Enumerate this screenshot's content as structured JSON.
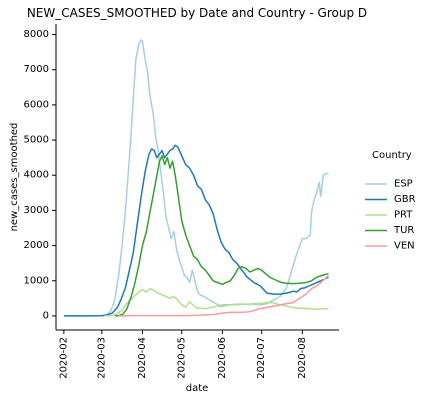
{
  "chart_data": {
    "type": "line",
    "title": "NEW_CASES_SMOOTHED by Date and Country - Group D",
    "xlabel": "date",
    "ylabel": "new_cases_smoothed",
    "x_ticks": [
      "2020-02",
      "2020-03",
      "2020-04",
      "2020-05",
      "2020-06",
      "2020-07",
      "2020-08"
    ],
    "x_range": [
      "2020-01-26",
      "2020-08-29"
    ],
    "y_ticks": [
      0,
      1000,
      2000,
      3000,
      4000,
      5000,
      6000,
      7000,
      8000
    ],
    "ylim": [
      -400,
      8300
    ],
    "grid": false,
    "legend": {
      "title": "Country",
      "placement": "right"
    },
    "series": [
      {
        "name": "ESP",
        "color": "#a6cee3",
        "points": [
          [
            "2020-02-01",
            0
          ],
          [
            "2020-02-15",
            0
          ],
          [
            "2020-02-25",
            5
          ],
          [
            "2020-03-01",
            10
          ],
          [
            "2020-03-05",
            40
          ],
          [
            "2020-03-08",
            150
          ],
          [
            "2020-03-11",
            500
          ],
          [
            "2020-03-14",
            1200
          ],
          [
            "2020-03-17",
            2200
          ],
          [
            "2020-03-19",
            3000
          ],
          [
            "2020-03-21",
            4000
          ],
          [
            "2020-03-23",
            5000
          ],
          [
            "2020-03-25",
            6200
          ],
          [
            "2020-03-27",
            7300
          ],
          [
            "2020-03-29",
            7700
          ],
          [
            "2020-03-31",
            7850
          ],
          [
            "2020-04-01",
            7800
          ],
          [
            "2020-04-03",
            7300
          ],
          [
            "2020-04-05",
            6900
          ],
          [
            "2020-04-07",
            6200
          ],
          [
            "2020-04-09",
            5800
          ],
          [
            "2020-04-11",
            5100
          ],
          [
            "2020-04-13",
            4700
          ],
          [
            "2020-04-15",
            4100
          ],
          [
            "2020-04-17",
            3500
          ],
          [
            "2020-04-19",
            2800
          ],
          [
            "2020-04-21",
            2500
          ],
          [
            "2020-04-23",
            2200
          ],
          [
            "2020-04-25",
            2400
          ],
          [
            "2020-04-27",
            1900
          ],
          [
            "2020-04-29",
            1600
          ],
          [
            "2020-05-01",
            1400
          ],
          [
            "2020-05-03",
            1150
          ],
          [
            "2020-05-05",
            1100
          ],
          [
            "2020-05-07",
            950
          ],
          [
            "2020-05-09",
            1300
          ],
          [
            "2020-05-11",
            1000
          ],
          [
            "2020-05-13",
            700
          ],
          [
            "2020-05-15",
            600
          ],
          [
            "2020-05-18",
            550
          ],
          [
            "2020-05-21",
            480
          ],
          [
            "2020-05-24",
            420
          ],
          [
            "2020-05-27",
            350
          ],
          [
            "2020-05-30",
            300
          ],
          [
            "2020-06-03",
            320
          ],
          [
            "2020-06-10",
            320
          ],
          [
            "2020-06-17",
            330
          ],
          [
            "2020-06-24",
            330
          ],
          [
            "2020-07-01",
            320
          ],
          [
            "2020-07-05",
            350
          ],
          [
            "2020-07-10",
            450
          ],
          [
            "2020-07-15",
            550
          ],
          [
            "2020-07-20",
            800
          ],
          [
            "2020-07-24",
            1300
          ],
          [
            "2020-07-28",
            1800
          ],
          [
            "2020-08-01",
            2200
          ],
          [
            "2020-08-04",
            2200
          ],
          [
            "2020-08-07",
            2300
          ],
          [
            "2020-08-08",
            2950
          ],
          [
            "2020-08-10",
            3300
          ],
          [
            "2020-08-12",
            3500
          ],
          [
            "2020-08-14",
            3800
          ],
          [
            "2020-08-15",
            3400
          ],
          [
            "2020-08-17",
            4000
          ],
          [
            "2020-08-19",
            4050
          ],
          [
            "2020-08-21",
            4050
          ]
        ]
      },
      {
        "name": "GBR",
        "color": "#1f78b4",
        "points": [
          [
            "2020-02-01",
            0
          ],
          [
            "2020-02-15",
            0
          ],
          [
            "2020-03-01",
            5
          ],
          [
            "2020-03-05",
            30
          ],
          [
            "2020-03-09",
            80
          ],
          [
            "2020-03-13",
            250
          ],
          [
            "2020-03-16",
            500
          ],
          [
            "2020-03-19",
            800
          ],
          [
            "2020-03-22",
            1300
          ],
          [
            "2020-03-25",
            1800
          ],
          [
            "2020-03-28",
            2600
          ],
          [
            "2020-03-31",
            3400
          ],
          [
            "2020-04-03",
            4100
          ],
          [
            "2020-04-06",
            4600
          ],
          [
            "2020-04-08",
            4750
          ],
          [
            "2020-04-10",
            4700
          ],
          [
            "2020-04-12",
            4500
          ],
          [
            "2020-04-14",
            4600
          ],
          [
            "2020-04-16",
            4700
          ],
          [
            "2020-04-18",
            4500
          ],
          [
            "2020-04-20",
            4600
          ],
          [
            "2020-04-22",
            4700
          ],
          [
            "2020-04-24",
            4750
          ],
          [
            "2020-04-26",
            4850
          ],
          [
            "2020-04-28",
            4800
          ],
          [
            "2020-05-01",
            4550
          ],
          [
            "2020-05-04",
            4300
          ],
          [
            "2020-05-07",
            4200
          ],
          [
            "2020-05-10",
            4000
          ],
          [
            "2020-05-13",
            3700
          ],
          [
            "2020-05-16",
            3600
          ],
          [
            "2020-05-19",
            3300
          ],
          [
            "2020-05-22",
            3150
          ],
          [
            "2020-05-25",
            2900
          ],
          [
            "2020-05-28",
            2450
          ],
          [
            "2020-05-31",
            2100
          ],
          [
            "2020-06-03",
            1900
          ],
          [
            "2020-06-06",
            1800
          ],
          [
            "2020-06-09",
            1600
          ],
          [
            "2020-06-12",
            1500
          ],
          [
            "2020-06-16",
            1300
          ],
          [
            "2020-06-20",
            1100
          ],
          [
            "2020-06-25",
            950
          ],
          [
            "2020-06-30",
            850
          ],
          [
            "2020-07-05",
            650
          ],
          [
            "2020-07-10",
            620
          ],
          [
            "2020-07-15",
            620
          ],
          [
            "2020-07-20",
            650
          ],
          [
            "2020-07-25",
            700
          ],
          [
            "2020-07-28",
            690
          ],
          [
            "2020-07-31",
            780
          ],
          [
            "2020-08-03",
            800
          ],
          [
            "2020-08-06",
            850
          ],
          [
            "2020-08-09",
            900
          ],
          [
            "2020-08-12",
            950
          ],
          [
            "2020-08-15",
            1000
          ],
          [
            "2020-08-18",
            1050
          ],
          [
            "2020-08-21",
            1100
          ]
        ]
      },
      {
        "name": "PRT",
        "color": "#b2df8a",
        "points": [
          [
            "2020-03-03",
            0
          ],
          [
            "2020-03-08",
            10
          ],
          [
            "2020-03-12",
            50
          ],
          [
            "2020-03-16",
            150
          ],
          [
            "2020-03-20",
            350
          ],
          [
            "2020-03-24",
            500
          ],
          [
            "2020-03-27",
            600
          ],
          [
            "2020-03-30",
            700
          ],
          [
            "2020-04-01",
            750
          ],
          [
            "2020-04-04",
            680
          ],
          [
            "2020-04-07",
            780
          ],
          [
            "2020-04-10",
            720
          ],
          [
            "2020-04-13",
            650
          ],
          [
            "2020-04-16",
            600
          ],
          [
            "2020-04-19",
            550
          ],
          [
            "2020-04-22",
            500
          ],
          [
            "2020-04-25",
            550
          ],
          [
            "2020-04-28",
            450
          ],
          [
            "2020-05-01",
            320
          ],
          [
            "2020-05-04",
            250
          ],
          [
            "2020-05-07",
            400
          ],
          [
            "2020-05-10",
            300
          ],
          [
            "2020-05-13",
            220
          ],
          [
            "2020-05-16",
            220
          ],
          [
            "2020-05-19",
            200
          ],
          [
            "2020-05-22",
            230
          ],
          [
            "2020-05-25",
            250
          ],
          [
            "2020-05-28",
            280
          ],
          [
            "2020-06-01",
            270
          ],
          [
            "2020-06-05",
            300
          ],
          [
            "2020-06-10",
            330
          ],
          [
            "2020-06-15",
            340
          ],
          [
            "2020-06-20",
            330
          ],
          [
            "2020-06-25",
            350
          ],
          [
            "2020-07-01",
            360
          ],
          [
            "2020-07-05",
            380
          ],
          [
            "2020-07-10",
            370
          ],
          [
            "2020-07-15",
            320
          ],
          [
            "2020-07-20",
            280
          ],
          [
            "2020-07-25",
            240
          ],
          [
            "2020-07-30",
            220
          ],
          [
            "2020-08-05",
            210
          ],
          [
            "2020-08-10",
            190
          ],
          [
            "2020-08-15",
            200
          ],
          [
            "2020-08-21",
            210
          ]
        ]
      },
      {
        "name": "TUR",
        "color": "#33a02c",
        "points": [
          [
            "2020-03-11",
            0
          ],
          [
            "2020-03-14",
            10
          ],
          [
            "2020-03-17",
            50
          ],
          [
            "2020-03-20",
            200
          ],
          [
            "2020-03-23",
            500
          ],
          [
            "2020-03-26",
            900
          ],
          [
            "2020-03-29",
            1400
          ],
          [
            "2020-04-01",
            2000
          ],
          [
            "2020-04-04",
            2400
          ],
          [
            "2020-04-07",
            3000
          ],
          [
            "2020-04-10",
            3600
          ],
          [
            "2020-04-12",
            4000
          ],
          [
            "2020-04-14",
            4400
          ],
          [
            "2020-04-16",
            4550
          ],
          [
            "2020-04-18",
            4300
          ],
          [
            "2020-04-20",
            4500
          ],
          [
            "2020-04-22",
            4200
          ],
          [
            "2020-04-24",
            4400
          ],
          [
            "2020-04-26",
            4000
          ],
          [
            "2020-04-28",
            3500
          ],
          [
            "2020-05-01",
            2700
          ],
          [
            "2020-05-04",
            2300
          ],
          [
            "2020-05-07",
            2000
          ],
          [
            "2020-05-10",
            1700
          ],
          [
            "2020-05-13",
            1600
          ],
          [
            "2020-05-16",
            1400
          ],
          [
            "2020-05-19",
            1300
          ],
          [
            "2020-05-22",
            1150
          ],
          [
            "2020-05-25",
            1000
          ],
          [
            "2020-05-28",
            950
          ],
          [
            "2020-06-01",
            900
          ],
          [
            "2020-06-04",
            950
          ],
          [
            "2020-06-07",
            1000
          ],
          [
            "2020-06-10",
            1150
          ],
          [
            "2020-06-13",
            1350
          ],
          [
            "2020-06-16",
            1400
          ],
          [
            "2020-06-19",
            1350
          ],
          [
            "2020-06-22",
            1250
          ],
          [
            "2020-06-25",
            1300
          ],
          [
            "2020-06-28",
            1350
          ],
          [
            "2020-07-01",
            1300
          ],
          [
            "2020-07-04",
            1200
          ],
          [
            "2020-07-07",
            1100
          ],
          [
            "2020-07-10",
            1050
          ],
          [
            "2020-07-13",
            1000
          ],
          [
            "2020-07-16",
            950
          ],
          [
            "2020-07-20",
            930
          ],
          [
            "2020-07-25",
            920
          ],
          [
            "2020-07-30",
            930
          ],
          [
            "2020-08-04",
            950
          ],
          [
            "2020-08-08",
            1000
          ],
          [
            "2020-08-12",
            1100
          ],
          [
            "2020-08-16",
            1150
          ],
          [
            "2020-08-21",
            1200
          ]
        ]
      },
      {
        "name": "VEN",
        "color": "#fb9a99",
        "points": [
          [
            "2020-03-14",
            0
          ],
          [
            "2020-03-25",
            10
          ],
          [
            "2020-04-05",
            10
          ],
          [
            "2020-04-20",
            10
          ],
          [
            "2020-05-01",
            10
          ],
          [
            "2020-05-15",
            20
          ],
          [
            "2020-05-25",
            40
          ],
          [
            "2020-06-01",
            80
          ],
          [
            "2020-06-08",
            100
          ],
          [
            "2020-06-15",
            100
          ],
          [
            "2020-06-22",
            120
          ],
          [
            "2020-06-29",
            200
          ],
          [
            "2020-07-06",
            250
          ],
          [
            "2020-07-13",
            300
          ],
          [
            "2020-07-20",
            350
          ],
          [
            "2020-07-25",
            380
          ],
          [
            "2020-07-30",
            500
          ],
          [
            "2020-08-03",
            600
          ],
          [
            "2020-08-06",
            700
          ],
          [
            "2020-08-09",
            800
          ],
          [
            "2020-08-12",
            850
          ],
          [
            "2020-08-15",
            950
          ],
          [
            "2020-08-18",
            1050
          ],
          [
            "2020-08-21",
            1150
          ]
        ]
      }
    ]
  }
}
